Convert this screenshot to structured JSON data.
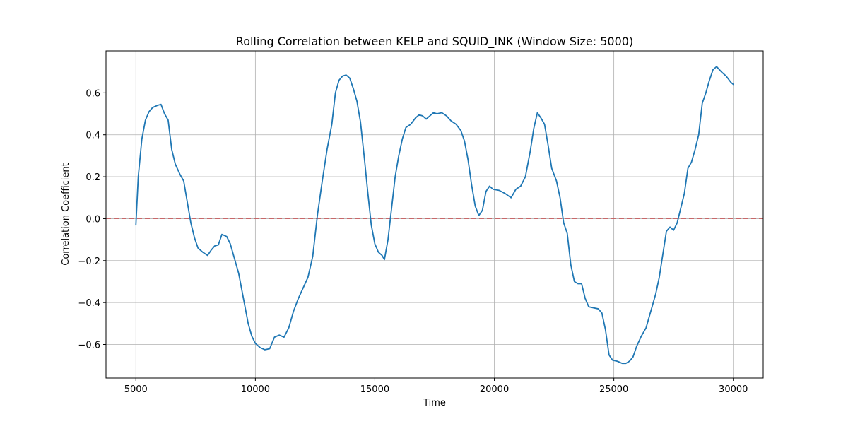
{
  "chart_data": {
    "type": "line",
    "title": "Rolling Correlation between KELP and SQUID_INK (Window Size: 5000)",
    "xlabel": "Time",
    "ylabel": "Correlation Coefficient",
    "xlim": [
      3750,
      31250
    ],
    "ylim": [
      -0.76,
      0.8
    ],
    "xticks": [
      5000,
      10000,
      15000,
      20000,
      25000,
      30000
    ],
    "xtick_labels": [
      "5000",
      "10000",
      "15000",
      "20000",
      "25000",
      "30000"
    ],
    "yticks": [
      -0.6,
      -0.4,
      -0.2,
      0.0,
      0.2,
      0.4,
      0.6
    ],
    "ytick_labels": [
      "−0.6",
      "−0.4",
      "−0.2",
      "0.0",
      "0.2",
      "0.4",
      "0.6"
    ],
    "grid": true,
    "reference_line": {
      "y": 0.0,
      "style": "dashed",
      "color": "#d62728"
    },
    "series": [
      {
        "color": "#1f77b4",
        "points": [
          [
            5000,
            -0.03
          ],
          [
            5100,
            0.2
          ],
          [
            5250,
            0.38
          ],
          [
            5400,
            0.47
          ],
          [
            5550,
            0.51
          ],
          [
            5700,
            0.53
          ],
          [
            5900,
            0.54
          ],
          [
            6050,
            0.545
          ],
          [
            6200,
            0.5
          ],
          [
            6350,
            0.47
          ],
          [
            6500,
            0.33
          ],
          [
            6650,
            0.26
          ],
          [
            6850,
            0.21
          ],
          [
            7000,
            0.18
          ],
          [
            7150,
            0.08
          ],
          [
            7300,
            -0.02
          ],
          [
            7450,
            -0.09
          ],
          [
            7600,
            -0.14
          ],
          [
            7800,
            -0.16
          ],
          [
            8000,
            -0.175
          ],
          [
            8150,
            -0.15
          ],
          [
            8300,
            -0.13
          ],
          [
            8450,
            -0.125
          ],
          [
            8600,
            -0.075
          ],
          [
            8800,
            -0.085
          ],
          [
            8950,
            -0.12
          ],
          [
            9100,
            -0.18
          ],
          [
            9300,
            -0.26
          ],
          [
            9500,
            -0.38
          ],
          [
            9700,
            -0.5
          ],
          [
            9850,
            -0.56
          ],
          [
            10000,
            -0.595
          ],
          [
            10200,
            -0.615
          ],
          [
            10400,
            -0.625
          ],
          [
            10600,
            -0.62
          ],
          [
            10800,
            -0.565
          ],
          [
            11000,
            -0.555
          ],
          [
            11200,
            -0.565
          ],
          [
            11400,
            -0.52
          ],
          [
            11600,
            -0.44
          ],
          [
            11800,
            -0.38
          ],
          [
            12000,
            -0.33
          ],
          [
            12200,
            -0.28
          ],
          [
            12400,
            -0.18
          ],
          [
            12600,
            0.02
          ],
          [
            12800,
            0.18
          ],
          [
            13000,
            0.33
          ],
          [
            13200,
            0.45
          ],
          [
            13350,
            0.6
          ],
          [
            13500,
            0.66
          ],
          [
            13650,
            0.68
          ],
          [
            13800,
            0.685
          ],
          [
            13950,
            0.67
          ],
          [
            14100,
            0.62
          ],
          [
            14250,
            0.56
          ],
          [
            14400,
            0.46
          ],
          [
            14550,
            0.3
          ],
          [
            14700,
            0.13
          ],
          [
            14850,
            -0.03
          ],
          [
            15000,
            -0.12
          ],
          [
            15150,
            -0.16
          ],
          [
            15300,
            -0.175
          ],
          [
            15400,
            -0.195
          ],
          [
            15550,
            -0.1
          ],
          [
            15700,
            0.05
          ],
          [
            15850,
            0.2
          ],
          [
            16000,
            0.3
          ],
          [
            16150,
            0.38
          ],
          [
            16300,
            0.435
          ],
          [
            16500,
            0.45
          ],
          [
            16700,
            0.48
          ],
          [
            16850,
            0.495
          ],
          [
            17000,
            0.49
          ],
          [
            17150,
            0.475
          ],
          [
            17300,
            0.49
          ],
          [
            17450,
            0.505
          ],
          [
            17600,
            0.5
          ],
          [
            17800,
            0.505
          ],
          [
            18000,
            0.49
          ],
          [
            18200,
            0.465
          ],
          [
            18400,
            0.45
          ],
          [
            18600,
            0.42
          ],
          [
            18750,
            0.37
          ],
          [
            18900,
            0.28
          ],
          [
            19050,
            0.16
          ],
          [
            19200,
            0.06
          ],
          [
            19350,
            0.015
          ],
          [
            19500,
            0.04
          ],
          [
            19650,
            0.13
          ],
          [
            19800,
            0.155
          ],
          [
            19950,
            0.14
          ],
          [
            20200,
            0.135
          ],
          [
            20450,
            0.12
          ],
          [
            20700,
            0.1
          ],
          [
            20900,
            0.14
          ],
          [
            21100,
            0.155
          ],
          [
            21300,
            0.2
          ],
          [
            21500,
            0.32
          ],
          [
            21650,
            0.43
          ],
          [
            21800,
            0.505
          ],
          [
            21950,
            0.48
          ],
          [
            22100,
            0.45
          ],
          [
            22250,
            0.35
          ],
          [
            22400,
            0.24
          ],
          [
            22600,
            0.18
          ],
          [
            22750,
            0.1
          ],
          [
            22900,
            -0.02
          ],
          [
            23050,
            -0.07
          ],
          [
            23200,
            -0.22
          ],
          [
            23350,
            -0.3
          ],
          [
            23500,
            -0.31
          ],
          [
            23650,
            -0.31
          ],
          [
            23800,
            -0.38
          ],
          [
            23950,
            -0.42
          ],
          [
            24150,
            -0.425
          ],
          [
            24350,
            -0.43
          ],
          [
            24500,
            -0.45
          ],
          [
            24650,
            -0.53
          ],
          [
            24800,
            -0.65
          ],
          [
            24950,
            -0.675
          ],
          [
            25150,
            -0.68
          ],
          [
            25350,
            -0.69
          ],
          [
            25500,
            -0.69
          ],
          [
            25650,
            -0.68
          ],
          [
            25800,
            -0.66
          ],
          [
            25950,
            -0.61
          ],
          [
            26150,
            -0.56
          ],
          [
            26350,
            -0.52
          ],
          [
            26550,
            -0.44
          ],
          [
            26750,
            -0.36
          ],
          [
            26900,
            -0.28
          ],
          [
            27050,
            -0.17
          ],
          [
            27200,
            -0.06
          ],
          [
            27350,
            -0.04
          ],
          [
            27500,
            -0.055
          ],
          [
            27650,
            -0.02
          ],
          [
            27800,
            0.05
          ],
          [
            27950,
            0.12
          ],
          [
            28100,
            0.24
          ],
          [
            28250,
            0.27
          ],
          [
            28400,
            0.33
          ],
          [
            28550,
            0.4
          ],
          [
            28700,
            0.55
          ],
          [
            28850,
            0.6
          ],
          [
            29000,
            0.66
          ],
          [
            29150,
            0.71
          ],
          [
            29300,
            0.725
          ],
          [
            29500,
            0.7
          ],
          [
            29700,
            0.68
          ],
          [
            29900,
            0.65
          ],
          [
            30000,
            0.64
          ]
        ]
      }
    ]
  }
}
